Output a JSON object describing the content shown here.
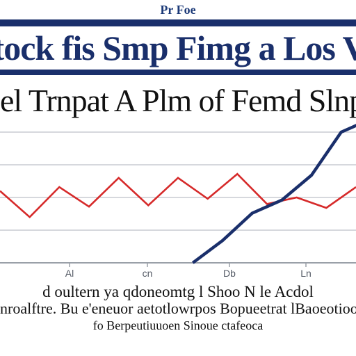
{
  "header": {
    "top_caption": "Pr Foe",
    "banner_title": "ing Stock fis Smp Fimg a Los Vrting",
    "subtitle": "el Trnpat A Plm of Femd Slnpias lof"
  },
  "footer": {
    "lines": [
      "d oultern ya qdoneomtg l Shoo N le Acdol",
      "nroalftre. Bu e'eneuor aetotlowrpos Bopueetrat lBaoeotioo",
      "fo Berpeutiuuoen Sinoue ctafeoca"
    ]
  },
  "chart_data": {
    "type": "line",
    "title": "",
    "xlabel": "",
    "ylabel": "",
    "categories": [
      "Al",
      "cn",
      "Db",
      "Ln"
    ],
    "x": [
      0,
      1,
      2,
      3,
      4,
      5,
      6,
      7,
      8,
      9,
      10,
      11,
      12
    ],
    "ylim": [
      0,
      100
    ],
    "grid": true,
    "legend": "none",
    "series": [
      {
        "color": "#d62a2a",
        "x": [
          0,
          1,
          2,
          3,
          4,
          5,
          6,
          7,
          8,
          9,
          10,
          11,
          12
        ],
        "values": [
          55,
          35,
          58,
          43,
          65,
          44,
          65,
          49,
          68,
          45,
          50,
          42,
          58
        ]
      },
      {
        "color": "#1a2f6b",
        "x": [
          6.5,
          7.5,
          8.5,
          9.5,
          10.5,
          11.5,
          12.5
        ],
        "values": [
          0,
          17,
          38,
          48,
          67,
          100,
          110
        ]
      }
    ]
  }
}
